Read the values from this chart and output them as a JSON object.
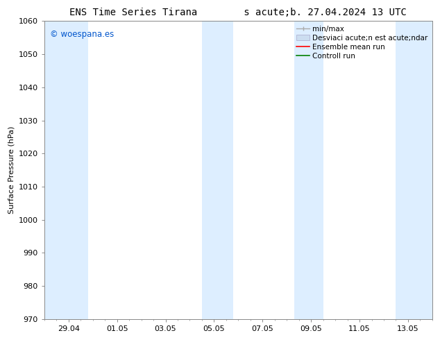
{
  "title_left": "ENS Time Series Tirana",
  "title_right": "s acute;b. 27.04.2024 13 UTC",
  "ylabel": "Surface Pressure (hPa)",
  "ylim": [
    970,
    1060
  ],
  "yticks": [
    970,
    980,
    990,
    1000,
    1010,
    1020,
    1030,
    1040,
    1050,
    1060
  ],
  "xtick_labels": [
    "29.04",
    "01.05",
    "03.05",
    "05.05",
    "07.05",
    "09.05",
    "11.05",
    "13.05"
  ],
  "xtick_positions": [
    1,
    3,
    5,
    7,
    9,
    11,
    13,
    15
  ],
  "xlim": [
    0,
    16
  ],
  "shaded_bands": [
    {
      "x_start": 0.0,
      "x_end": 1.8
    },
    {
      "x_start": 6.5,
      "x_end": 7.8
    },
    {
      "x_start": 10.3,
      "x_end": 11.5
    },
    {
      "x_start": 14.5,
      "x_end": 16.0
    }
  ],
  "shaded_color": "#ddeeff",
  "watermark_text": "© woespana.es",
  "watermark_color": "#0055cc",
  "bg_color": "#ffffff",
  "title_fontsize": 10,
  "label_fontsize": 8,
  "tick_fontsize": 8,
  "legend_fontsize": 7.5,
  "spine_color": "#888888",
  "grid_color": "#dddddd"
}
